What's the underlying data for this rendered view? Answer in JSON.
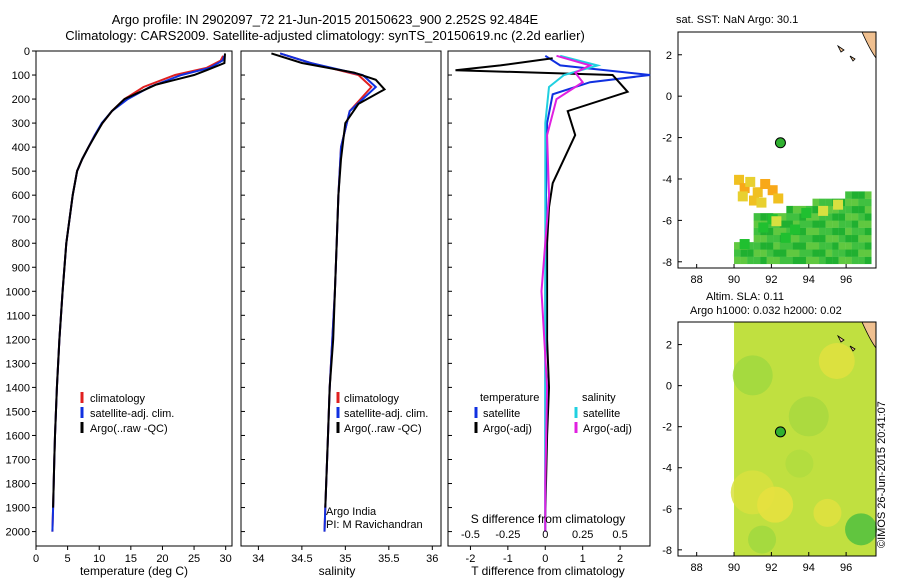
{
  "header": {
    "line1": "Argo profile: IN 2902097_72 21-Jun-2015 20150623_900 2.252S 92.484E",
    "line2": "Climatology: CARS2009. Satellite-adjusted climatology: synTS_20150619.nc (2.2d earlier)"
  },
  "map_sst": {
    "title": "sat. SST: NaN Argo: 30.1"
  },
  "map_sla": {
    "title1": "Altim. SLA: 0.11",
    "title2": "Argo h1000: 0.032 h2000: 0.02"
  },
  "footer": {
    "argo_india": "Argo India",
    "pi": "PI: M Ravichandran",
    "imos_stamp": "©IMOS 26-Jun-2015 20:41:07"
  },
  "colors": {
    "climatology": "#e02020",
    "satellite": "#1030e0",
    "argo": "#000000",
    "sat_diff": "#20d0e0",
    "argo_diff": "#e020e0"
  },
  "chart_data": [
    {
      "type": "line",
      "name": "temperature",
      "xlabel": "temperature (deg C)",
      "ylabel": "",
      "xlim": [
        0,
        31
      ],
      "ylim": [
        2060,
        0
      ],
      "xticks": [
        0,
        5,
        10,
        15,
        20,
        25,
        30
      ],
      "yticks": [
        0,
        100,
        200,
        300,
        400,
        500,
        600,
        700,
        800,
        900,
        1000,
        1100,
        1200,
        1300,
        1400,
        1500,
        1600,
        1700,
        1800,
        1900,
        2000
      ],
      "legend": [
        "climatology",
        "satellite-adj. clim.",
        "Argo(..raw -QC)"
      ],
      "series": [
        {
          "name": "climatology",
          "color": "climatology",
          "x": [
            29.6,
            29.2,
            27,
            22,
            17,
            14,
            12,
            10.5,
            9.3,
            8.3,
            7.3,
            6.5,
            5.8,
            5.3,
            4.8,
            4.2,
            3.7,
            3.3,
            3.0,
            2.9,
            2.8,
            2.7,
            2.6
          ],
          "y": [
            20,
            40,
            70,
            100,
            150,
            200,
            250,
            300,
            350,
            400,
            450,
            500,
            600,
            700,
            800,
            1000,
            1200,
            1400,
            1600,
            1700,
            1800,
            1900,
            2000
          ]
        },
        {
          "name": "satellite",
          "color": "satellite",
          "x": [
            29.8,
            29.5,
            27.5,
            23,
            18,
            14.5,
            12,
            10.4,
            9.3,
            8.3,
            7.3,
            6.5,
            5.8,
            5.3,
            4.8,
            4.2,
            3.7,
            3.3,
            3.0,
            2.9,
            2.8,
            2.7,
            2.6
          ],
          "y": [
            20,
            40,
            70,
            100,
            150,
            200,
            250,
            300,
            350,
            400,
            450,
            500,
            600,
            700,
            800,
            1000,
            1200,
            1400,
            1600,
            1700,
            1800,
            1900,
            2000
          ]
        },
        {
          "name": "argo",
          "color": "argo",
          "x": [
            29.9,
            29.8,
            27,
            25,
            22,
            19,
            16.5,
            14,
            12,
            10.5,
            9.4,
            8.3,
            7.3,
            6.5,
            5.8,
            5.3,
            4.8,
            4.2,
            3.7,
            3.3,
            3.0,
            2.9,
            2.8,
            2.7
          ],
          "y": [
            10,
            50,
            80,
            100,
            120,
            140,
            170,
            200,
            250,
            300,
            350,
            400,
            450,
            500,
            600,
            700,
            800,
            1000,
            1200,
            1400,
            1600,
            1700,
            1800,
            1900
          ]
        }
      ]
    },
    {
      "type": "line",
      "name": "salinity",
      "xlabel": "salinity",
      "xlim": [
        33.8,
        36.1
      ],
      "ylim": [
        2060,
        0
      ],
      "xticks": [
        34,
        34.5,
        35,
        35.5,
        36
      ],
      "legend": [
        "climatology",
        "satellite-adj. clim.",
        "Argo(..raw -QC)"
      ],
      "series": [
        {
          "name": "climatology",
          "color": "climatology",
          "x": [
            34.25,
            34.6,
            35.15,
            35.3,
            35.05,
            34.95,
            34.92,
            34.9,
            34.88,
            34.85,
            34.82,
            34.8,
            34.78,
            34.77,
            34.76
          ],
          "y": [
            10,
            50,
            100,
            150,
            250,
            400,
            600,
            800,
            1000,
            1200,
            1400,
            1600,
            1800,
            1900,
            2000
          ]
        },
        {
          "name": "satellite",
          "color": "satellite",
          "x": [
            34.25,
            34.6,
            35.2,
            35.35,
            35.05,
            34.95,
            34.92,
            34.9,
            34.88,
            34.85,
            34.82,
            34.8,
            34.78,
            34.77,
            34.76
          ],
          "y": [
            10,
            50,
            100,
            150,
            250,
            400,
            600,
            800,
            1000,
            1200,
            1400,
            1600,
            1800,
            1900,
            2000
          ]
        },
        {
          "name": "argo",
          "color": "argo",
          "x": [
            34.15,
            34.5,
            35.1,
            35.35,
            35.45,
            35.15,
            35.0,
            34.95,
            34.92,
            34.9,
            34.88,
            34.86,
            34.82,
            34.8,
            34.78,
            34.77
          ],
          "y": [
            10,
            50,
            90,
            120,
            160,
            220,
            300,
            450,
            600,
            800,
            1000,
            1200,
            1400,
            1600,
            1800,
            1900
          ]
        }
      ]
    },
    {
      "type": "line",
      "name": "differences",
      "xlabel_top": "S difference from climatology",
      "xlabel": "T difference from climatology",
      "xlim": [
        -2.6,
        2.8
      ],
      "ylim": [
        2060,
        0
      ],
      "xticks_T": [
        -2,
        -1,
        0,
        1,
        2
      ],
      "xticks_S_labels": [
        "-0.5",
        "-0.25",
        "0",
        "0.25",
        "0.5"
      ],
      "xticks_S_values": [
        -2,
        -1,
        0,
        1,
        2
      ],
      "legend_left_title": "temperature",
      "legend_right_title": "salinity",
      "legend": [
        "satellite",
        "Argo(-adj)",
        "satellite",
        "Argo(-adj)"
      ],
      "series": [
        {
          "name": "T satellite",
          "color": "satellite",
          "x": [
            0,
            0.4,
            2.8,
            1.2,
            0.2,
            0.05,
            0.02,
            0,
            0,
            0,
            0
          ],
          "y": [
            20,
            60,
            100,
            130,
            180,
            300,
            600,
            1000,
            1400,
            1800,
            2000
          ]
        },
        {
          "name": "T Argo",
          "color": "argo",
          "x": [
            0.2,
            -1.2,
            -2.4,
            1.8,
            2.2,
            0.6,
            0.8,
            0.5,
            0.2,
            0.1,
            0.05,
            0.05,
            0.05,
            0.1,
            0.05,
            0.02,
            0
          ],
          "y": [
            30,
            60,
            80,
            100,
            170,
            250,
            350,
            450,
            550,
            650,
            800,
            1000,
            1200,
            1400,
            1600,
            1800,
            1950
          ]
        },
        {
          "name": "S satellite",
          "color": "sat_diff",
          "x": [
            0.4,
            1.4,
            0.5,
            0.1,
            0,
            0,
            0,
            0,
            0,
            0
          ],
          "y": [
            20,
            60,
            100,
            150,
            300,
            600,
            1000,
            1400,
            1800,
            2000
          ]
        },
        {
          "name": "S Argo",
          "color": "argo_diff",
          "x": [
            0.3,
            1.2,
            0.8,
            1.0,
            0.3,
            0.05,
            0.1,
            -0.1,
            0.05,
            0,
            0
          ],
          "y": [
            20,
            60,
            90,
            130,
            200,
            350,
            600,
            1000,
            1400,
            1800,
            2000
          ]
        }
      ]
    },
    {
      "type": "heatmap",
      "name": "sst_map",
      "xlim": [
        87,
        97.6
      ],
      "ylim": [
        -8.3,
        3.1
      ],
      "xticks": [
        88,
        90,
        92,
        94,
        96
      ],
      "yticks": [
        -8,
        -6,
        -4,
        -2,
        0,
        2
      ],
      "argo_position": {
        "lon": 92.484,
        "lat": -2.252
      }
    },
    {
      "type": "heatmap",
      "name": "sla_map",
      "xlim": [
        87,
        97.6
      ],
      "ylim": [
        -8.3,
        3.1
      ],
      "xticks": [
        88,
        90,
        92,
        94,
        96
      ],
      "yticks": [
        -8,
        -6,
        -4,
        -2,
        0,
        2
      ],
      "argo_position": {
        "lon": 92.484,
        "lat": -2.252
      }
    }
  ]
}
